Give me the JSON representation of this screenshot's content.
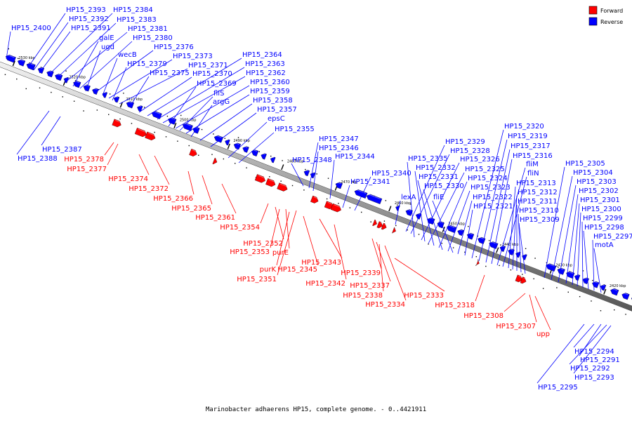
{
  "legend": [
    {
      "label": "Forward",
      "color": "#ff0000"
    },
    {
      "label": "Reverse",
      "color": "#0000ff"
    }
  ],
  "caption": "Marinobacter adhaerens HP15, complete genome. - 0..4421911",
  "colors": {
    "forward": "#ff0000",
    "reverse": "#0000ff",
    "backbone": "#888888"
  },
  "scale_labels": [
    {
      "label": "2530 kbp",
      "pos": 2530
    },
    {
      "label": "2520 kbp",
      "pos": 2520
    },
    {
      "label": "2510 kbp",
      "pos": 2510
    },
    {
      "label": "2500 kbp",
      "pos": 2500
    },
    {
      "label": "2490 kbp",
      "pos": 2490
    },
    {
      "label": "2480 kbp",
      "pos": 2480
    },
    {
      "label": "2470 kbp",
      "pos": 2470
    },
    {
      "label": "2460 kbp",
      "pos": 2460
    },
    {
      "label": "2450 kbp",
      "pos": 2450
    },
    {
      "label": "2440 kbp",
      "pos": 2440
    },
    {
      "label": "2430 kbp",
      "pos": 2430
    },
    {
      "label": "2420 kbp",
      "pos": 2420
    }
  ],
  "reverse_labels": [
    "HP15_2400",
    "HP15_2393",
    "HP15_2392",
    "HP15_2391",
    "HP15_2384",
    "HP15_2383",
    "HP15_2381",
    "galE",
    "HP15_2380",
    "ugd",
    "HP15_2376",
    "wecB",
    "HP15_2373",
    "HP15_2379",
    "HP15_2371",
    "HP15_2375",
    "HP15_2370",
    "HP15_2364",
    "HP15_2363",
    "HP15_2362",
    "HP15_2369",
    "HP15_2360",
    "fliS",
    "HP15_2359",
    "argG",
    "HP15_2358",
    "HP15_2357",
    "epsC",
    "HP15_2355",
    "HP15_2347",
    "HP15_2346",
    "HP15_2344",
    "HP15_2348",
    "HP15_2340",
    "HP15_2341",
    "lexA",
    "HP15_2329",
    "HP15_2328",
    "HP15_2335",
    "HP15_2326",
    "HP15_2332",
    "HP15_2325",
    "HP15_2331",
    "HP15_2324",
    "HP15_2330",
    "HP15_2323",
    "fliE",
    "HP15_2322",
    "HP15_2321",
    "HP15_2320",
    "HP15_2319",
    "HP15_2317",
    "HP15_2316",
    "fliM",
    "fliN",
    "HP15_2313",
    "HP15_2312",
    "HP15_2311",
    "HP15_2310",
    "HP15_2309",
    "HP15_2305",
    "HP15_2304",
    "HP15_2303",
    "HP15_2302",
    "HP15_2301",
    "HP15_2300",
    "HP15_2299",
    "HP15_2298",
    "HP15_2297",
    "motA",
    "HP15_2387",
    "HP15_2388",
    "HP15_2294",
    "HP15_2291",
    "HP15_2292",
    "HP15_2293",
    "HP15_2295"
  ],
  "forward_labels": [
    "HP15_2378",
    "HP15_2377",
    "HP15_2374",
    "HP15_2372",
    "HP15_2366",
    "HP15_2365",
    "HP15_2361",
    "HP15_2354",
    "HP15_2352",
    "HP15_2353",
    "purE",
    "purK",
    "HP15_2345",
    "HP15_2351",
    "HP15_2343",
    "HP15_2342",
    "HP15_2339",
    "HP15_2337",
    "HP15_2338",
    "HP15_2334",
    "HP15_2333",
    "HP15_2318",
    "HP15_2308",
    "HP15_2307",
    "upp"
  ]
}
